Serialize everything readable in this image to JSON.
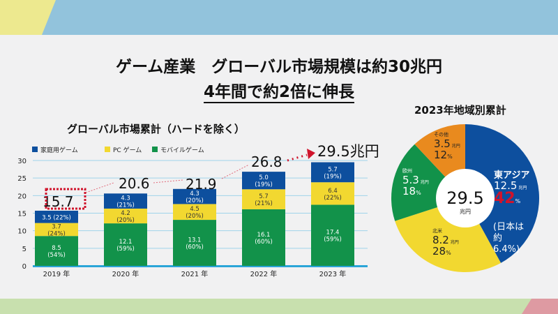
{
  "slide": {
    "title_line1": "ゲーム産業　グローバル市場規模は約30兆円",
    "title_line2": "4年間で約2倍に伸長",
    "bar_chart_title": "グローバル市場累計（ハードを除く）",
    "pie_chart_title": "2023年地域別累計"
  },
  "colors": {
    "console": "#0d4f9e",
    "pc": "#f2d830",
    "mobile": "#12924a",
    "other": "#e98a1e",
    "top_band": "#92c3dc",
    "top_accent": "#ede98f",
    "bottom_band": "#c8e0ae",
    "bottom_accent": "#de9aa2",
    "highlight": "#d0142c"
  },
  "chart_data": [
    {
      "type": "bar",
      "stacked": true,
      "categories": [
        "2019 年",
        "2020 年",
        "2021 年",
        "2022 年",
        "2023 年"
      ],
      "series": [
        {
          "name": "モバイルゲーム",
          "values": [
            8.5,
            12.1,
            13.1,
            16.1,
            17.4
          ],
          "labels": [
            "(54%)",
            "(59%)",
            "(60%)",
            "(60%)",
            "(59%)"
          ]
        },
        {
          "name": "PC ゲーム",
          "values": [
            3.7,
            4.2,
            4.5,
            5.7,
            6.4
          ],
          "labels": [
            "(24%)",
            "(20%)",
            "(20%)",
            "(21%)",
            "(22%)"
          ]
        },
        {
          "name": "家庭用ゲーム",
          "values": [
            3.5,
            4.3,
            4.3,
            5.0,
            5.7
          ],
          "labels": [
            "(22%)",
            "(21%)",
            "(20%)",
            "(19%)",
            "(19%)"
          ]
        }
      ],
      "totals": [
        "15.7",
        "20.6",
        "21.9",
        "26.8",
        "29.5兆円"
      ],
      "yticks": [
        "0",
        "5",
        "10",
        "15",
        "20",
        "25",
        "30"
      ],
      "ylim": [
        0,
        30
      ],
      "grid": true,
      "legend": "top-left"
    },
    {
      "type": "pie",
      "donut": true,
      "center_value": "29.5",
      "center_unit": "兆円",
      "slices": [
        {
          "name": "東アジア",
          "value": "12.5",
          "unit": "兆円",
          "percent": 42,
          "note": [
            "(日本は",
            "約",
            "6.4%)"
          ]
        },
        {
          "name": "北米",
          "value": "8.2",
          "unit": "兆円",
          "percent": 28
        },
        {
          "name": "欧州",
          "value": "5.3",
          "unit": "兆円",
          "percent": 18
        },
        {
          "name": "その他",
          "value": "3.5",
          "unit": "兆円",
          "percent": 12
        }
      ],
      "percent_sign": "%"
    }
  ]
}
